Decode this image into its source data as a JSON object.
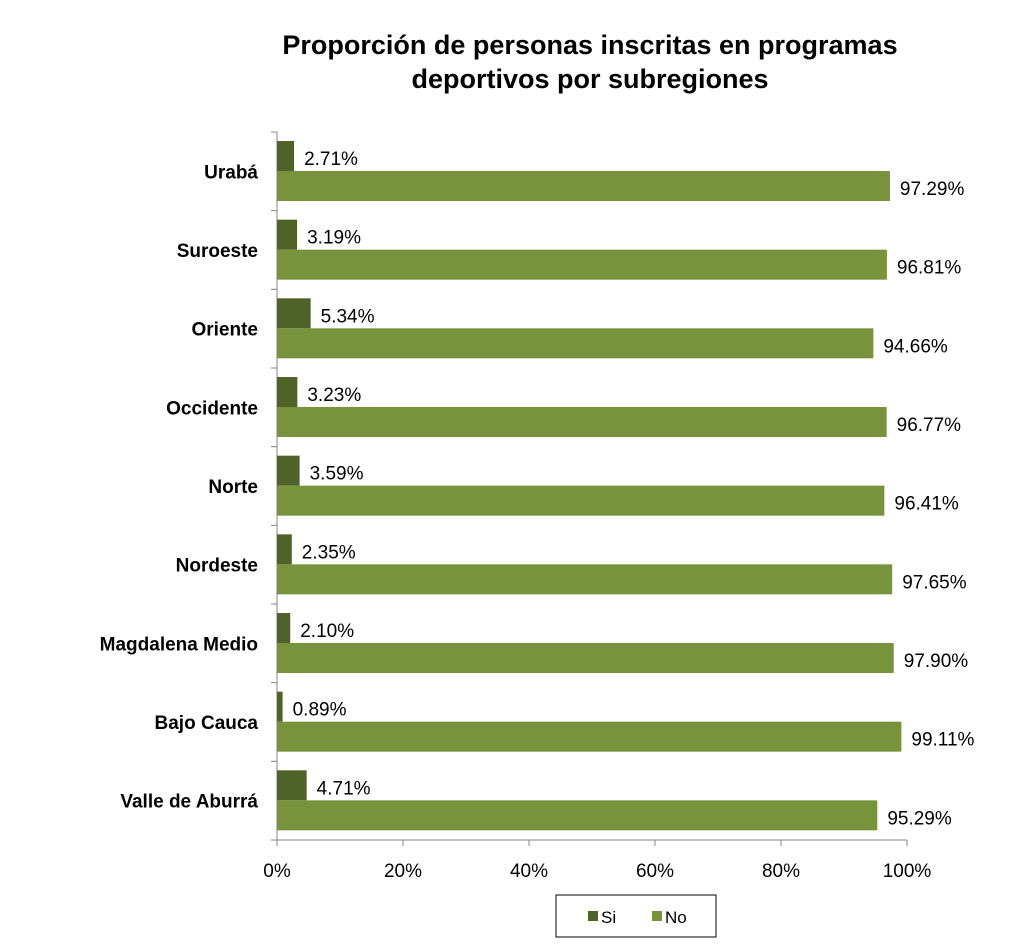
{
  "chart_data": {
    "type": "bar",
    "orientation": "horizontal",
    "title_lines": [
      "Proporción de personas inscritas en programas",
      "deportivos por subregiones"
    ],
    "categories": [
      "Urabá",
      "Suroeste",
      "Oriente",
      "Occidente",
      "Norte",
      "Nordeste",
      "Magdalena Medio",
      "Bajo Cauca",
      "Valle de Aburrá"
    ],
    "series": [
      {
        "name": "Si",
        "color": "#4f6228",
        "values": [
          2.71,
          3.19,
          5.34,
          3.23,
          3.59,
          2.35,
          2.1,
          0.89,
          4.71
        ],
        "labels": [
          "2.71%",
          "3.19%",
          "5.34%",
          "3.23%",
          "3.59%",
          "2.35%",
          "2.10%",
          "0.89%",
          "4.71%"
        ]
      },
      {
        "name": "No",
        "color": "#77933c",
        "values": [
          97.29,
          96.81,
          94.66,
          96.77,
          96.41,
          97.65,
          97.9,
          99.11,
          95.29
        ],
        "labels": [
          "97.29%",
          "96.81%",
          "94.66%",
          "96.77%",
          "96.41%",
          "97.65%",
          "97.90%",
          "99.11%",
          "95.29%"
        ]
      }
    ],
    "x_ticks": [
      0,
      20,
      40,
      60,
      80,
      100
    ],
    "x_tick_labels": [
      "0%",
      "20%",
      "40%",
      "60%",
      "80%",
      "100%"
    ],
    "xlim": [
      0,
      100
    ],
    "grid": false,
    "legend_position": "bottom"
  }
}
